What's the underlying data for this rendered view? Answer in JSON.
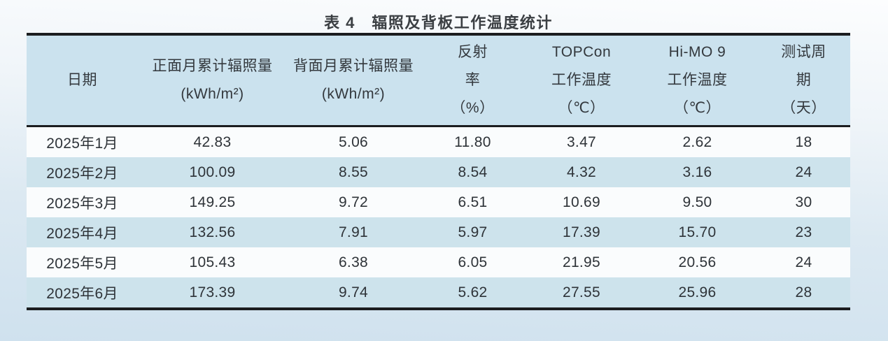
{
  "page": {
    "type": "scanned-paper-table",
    "background_top": "#fcfdfe",
    "background_bottom": "#cfe1ee"
  },
  "colors": {
    "header_blue": "#cbe2ee",
    "row_alt_blue": "#cde3ec",
    "row_white": "#fafcfd",
    "rule_dark": "#1b1d1f",
    "text": "#2e3338"
  },
  "table": {
    "title": "表 4　辐照及背板工作温度统计",
    "columns": [
      {
        "lines": [
          "日期"
        ]
      },
      {
        "lines": [
          "正面月累计辐照量",
          "(kWh/m²)"
        ]
      },
      {
        "lines": [
          "背面月累计辐照量",
          "(kWh/m²)"
        ]
      },
      {
        "lines": [
          "反射",
          "率",
          "（%）"
        ]
      },
      {
        "lines": [
          "TOPCon",
          "工作温度",
          "（℃）"
        ]
      },
      {
        "lines": [
          "Hi-MO 9",
          "工作温度",
          "（℃）"
        ]
      },
      {
        "lines": [
          "测试周",
          "期",
          "（天）"
        ]
      }
    ],
    "rows": [
      [
        "2025年1月",
        "42.83",
        "5.06",
        "11.80",
        "3.47",
        "2.62",
        "18"
      ],
      [
        "2025年2月",
        "100.09",
        "8.55",
        "8.54",
        "4.32",
        "3.16",
        "24"
      ],
      [
        "2025年3月",
        "149.25",
        "9.72",
        "6.51",
        "10.69",
        "9.50",
        "30"
      ],
      [
        "2025年4月",
        "132.56",
        "7.91",
        "5.97",
        "17.39",
        "15.70",
        "23"
      ],
      [
        "2025年5月",
        "105.43",
        "6.38",
        "6.05",
        "21.95",
        "20.56",
        "24"
      ],
      [
        "2025年6月",
        "173.39",
        "9.74",
        "5.62",
        "27.55",
        "25.96",
        "28"
      ]
    ]
  }
}
